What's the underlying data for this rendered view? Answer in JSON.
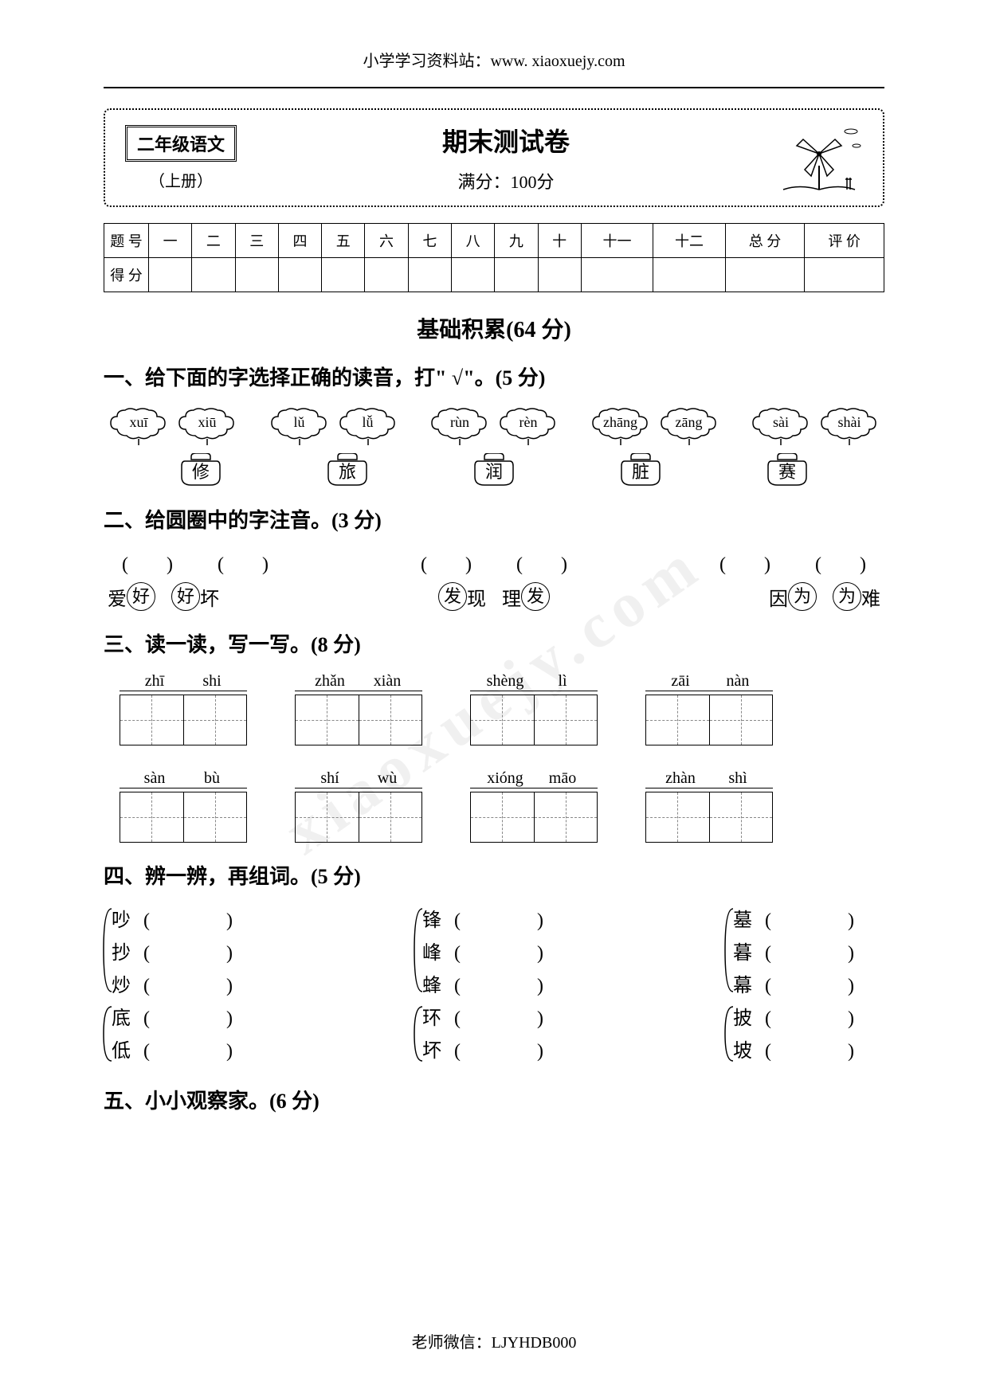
{
  "header_url": "小学学习资料站：www. xiaoxuejy.com",
  "grade_label": "二年级语文",
  "volume": "（上册）",
  "main_title": "期末测试卷",
  "full_score": "满分：100分",
  "score_row_label": "题 号",
  "score_cols": [
    "一",
    "二",
    "三",
    "四",
    "五",
    "六",
    "七",
    "八",
    "九",
    "十",
    "十一",
    "十二",
    "总 分",
    "评 价"
  ],
  "score_row2_label": "得 分",
  "section_title": "基础积累(64 分)",
  "q1_heading": "一、给下面的字选择正确的读音，打\" √\"。(5 分)",
  "q1_pairs": [
    {
      "a": "xuī",
      "b": "xiū",
      "char": "修"
    },
    {
      "a": "lǔ",
      "b": "lǚ",
      "char": "旅"
    },
    {
      "a": "rùn",
      "b": "rèn",
      "char": "润"
    },
    {
      "a": "zhāng",
      "b": "zāng",
      "char": "脏"
    },
    {
      "a": "sài",
      "b": "shài",
      "char": "赛"
    }
  ],
  "q2_heading": "二、给圆圈中的字注音。(3 分)",
  "q2_groups": [
    [
      {
        "pre": "爱",
        "circ": "好"
      },
      {
        "circ": "好",
        "post": "坏"
      }
    ],
    [
      {
        "circ": "发",
        "post": "现"
      },
      {
        "pre": "理",
        "circ": "发"
      }
    ],
    [
      {
        "pre": "因",
        "circ": "为"
      },
      {
        "circ": "为",
        "post": "难"
      }
    ]
  ],
  "q3_heading": "三、读一读，写一写。(8 分)",
  "q3_items": [
    {
      "p1": "zhī",
      "p2": "shi"
    },
    {
      "p1": "zhǎn",
      "p2": "xiàn"
    },
    {
      "p1": "shèng",
      "p2": "lì"
    },
    {
      "p1": "zāi",
      "p2": "nàn"
    },
    {
      "p1": "sàn",
      "p2": "bù"
    },
    {
      "p1": "shí",
      "p2": "wù"
    },
    {
      "p1": "xióng",
      "p2": "māo"
    },
    {
      "p1": "zhàn",
      "p2": "shì"
    }
  ],
  "q4_heading": "四、辨一辨，再组词。(5 分)",
  "q4_cols": [
    {
      "g1": [
        "吵",
        "抄",
        "炒"
      ],
      "g2": [
        "底",
        "低"
      ]
    },
    {
      "g1": [
        "锋",
        "峰",
        "蜂"
      ],
      "g2": [
        "环",
        "坏"
      ]
    },
    {
      "g1": [
        "墓",
        "暮",
        "幕"
      ],
      "g2": [
        "披",
        "坡"
      ]
    }
  ],
  "q5_heading": "五、小小观察家。(6 分)",
  "footer": "老师微信：LJYHDB000",
  "watermark": "xiaoxuejy.com"
}
